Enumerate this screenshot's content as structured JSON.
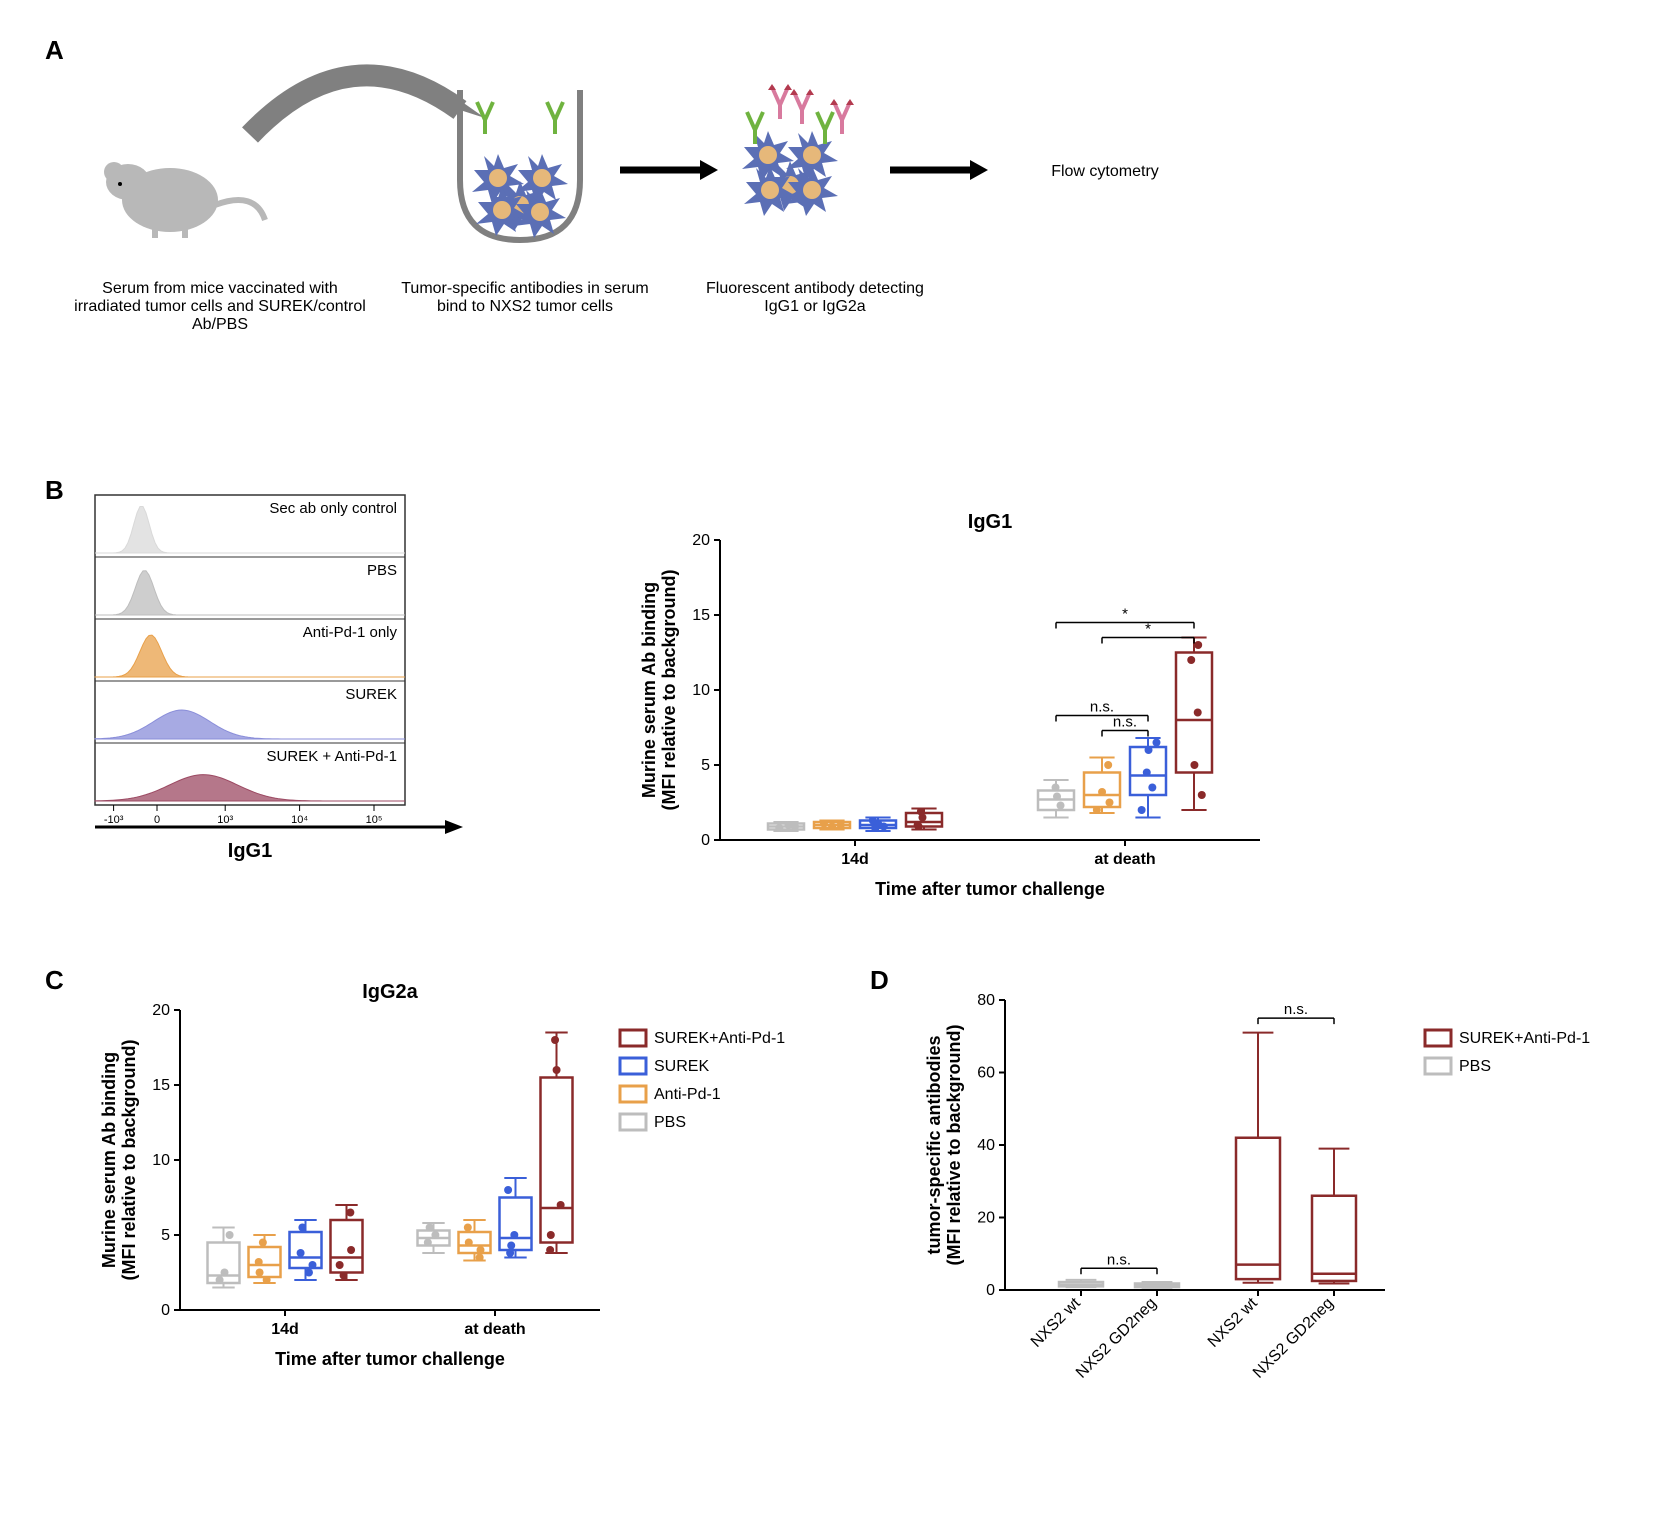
{
  "panelA": {
    "label": "A",
    "step1": "Serum from mice vaccinated with irradiated tumor cells and SUREK/control Ab/PBS",
    "step2": "Tumor-specific antibodies in serum bind to NXS2 tumor cells",
    "step3": "Fluorescent antibody detecting IgG1 or IgG2a",
    "step4": "Flow cytometry",
    "colors": {
      "mouse": "#9e9e9e",
      "arrow_curve": "#808080",
      "tumor_cell": "#5b6fb5",
      "tumor_core": "#e6b87a",
      "tube_outline": "#808080",
      "ab_green": "#6fb33f",
      "ab_pink": "#d87a9e",
      "ab_star": "#b33a4f"
    }
  },
  "panelB": {
    "label": "B",
    "histogram": {
      "x_axis": "IgG1",
      "x_ticks": [
        "-10³",
        "0",
        "10³",
        "10⁴",
        "10⁵"
      ],
      "traces": [
        {
          "label": "Sec ab only control",
          "color": "#d9d9d9",
          "peak_x": 0.15,
          "width": 0.05,
          "height": 0.9
        },
        {
          "label": "PBS",
          "color": "#bdbdbd",
          "peak_x": 0.16,
          "width": 0.06,
          "height": 0.85
        },
        {
          "label": "Anti-Pd-1 only",
          "color": "#e8a04a",
          "peak_x": 0.18,
          "width": 0.07,
          "height": 0.8
        },
        {
          "label": "SUREK",
          "color": "#8a8ed9",
          "peak_x": 0.28,
          "width": 0.18,
          "height": 0.55
        },
        {
          "label": "SUREK + Anti-Pd-1",
          "color": "#9c4a63",
          "peak_x": 0.35,
          "width": 0.22,
          "height": 0.5
        }
      ],
      "frame_color": "#333333"
    },
    "boxplot": {
      "title": "IgG1",
      "ylabel": "Murine serum Ab binding\n(MFI relative to background)",
      "xlabel": "Time after tumor challenge",
      "ylim": [
        0,
        20
      ],
      "ytick_step": 5,
      "groups": [
        "14d",
        "at death"
      ],
      "series": [
        {
          "name": "PBS",
          "color": "#bdbdbd"
        },
        {
          "name": "Anti-Pd-1",
          "color": "#e8a04a"
        },
        {
          "name": "SUREK",
          "color": "#3a5fd9"
        },
        {
          "name": "SUREK+Anti-Pd-1",
          "color": "#8a2a2a"
        }
      ],
      "data": {
        "14d": [
          {
            "q1": 0.7,
            "median": 0.9,
            "q3": 1.1,
            "min": 0.6,
            "max": 1.2,
            "points": [
              0.8,
              1.0,
              0.9
            ]
          },
          {
            "q1": 0.8,
            "median": 1.0,
            "q3": 1.2,
            "min": 0.7,
            "max": 1.3,
            "points": [
              0.9,
              1.1,
              1.0
            ]
          },
          {
            "q1": 0.8,
            "median": 1.0,
            "q3": 1.3,
            "min": 0.6,
            "max": 1.5,
            "points": [
              0.9,
              1.1,
              1.3,
              0.8
            ]
          },
          {
            "q1": 0.9,
            "median": 1.2,
            "q3": 1.8,
            "min": 0.7,
            "max": 2.1,
            "points": [
              1.0,
              1.5,
              1.9,
              0.9
            ]
          }
        ],
        "at_death": [
          {
            "q1": 2.0,
            "median": 2.7,
            "q3": 3.3,
            "min": 1.5,
            "max": 4.0,
            "points": [
              2.3,
              2.9,
              3.5
            ]
          },
          {
            "q1": 2.2,
            "median": 3.0,
            "q3": 4.5,
            "min": 1.8,
            "max": 5.5,
            "points": [
              2.5,
              3.2,
              5.0,
              2.0
            ]
          },
          {
            "q1": 3.0,
            "median": 4.3,
            "q3": 6.2,
            "min": 1.5,
            "max": 6.8,
            "points": [
              3.5,
              4.5,
              6.0,
              2.0,
              6.5
            ]
          },
          {
            "q1": 4.5,
            "median": 8.0,
            "q3": 12.5,
            "min": 2.0,
            "max": 13.5,
            "points": [
              5.0,
              8.5,
              12.0,
              13.0,
              3.0
            ]
          }
        ]
      },
      "annotations": [
        {
          "from": 0,
          "to": 2,
          "label": "n.s.",
          "y": 8.3
        },
        {
          "from": 1,
          "to": 2,
          "label": "n.s.",
          "y": 7.3
        },
        {
          "from": 0,
          "to": 3,
          "label": "*",
          "y": 14.5
        },
        {
          "from": 1,
          "to": 3,
          "label": "*",
          "y": 13.5
        }
      ],
      "title_fontsize": 20,
      "label_fontsize": 18,
      "tick_fontsize": 16
    }
  },
  "panelC": {
    "label": "C",
    "boxplot": {
      "title": "IgG2a",
      "ylabel": "Murine serum Ab binding\n(MFI relative to background)",
      "xlabel": "Time after tumor challenge",
      "ylim": [
        0,
        20
      ],
      "ytick_step": 5,
      "groups": [
        "14d",
        "at death"
      ],
      "series": [
        {
          "name": "PBS",
          "color": "#bdbdbd"
        },
        {
          "name": "Anti-Pd-1",
          "color": "#e8a04a"
        },
        {
          "name": "SUREK",
          "color": "#3a5fd9"
        },
        {
          "name": "SUREK+Anti-Pd-1",
          "color": "#8a2a2a"
        }
      ],
      "legend": [
        {
          "name": "SUREK+Anti-Pd-1",
          "color": "#8a2a2a"
        },
        {
          "name": "SUREK",
          "color": "#3a5fd9"
        },
        {
          "name": "Anti-Pd-1",
          "color": "#e8a04a"
        },
        {
          "name": "PBS",
          "color": "#bdbdbd"
        }
      ],
      "data": {
        "14d": [
          {
            "q1": 1.8,
            "median": 2.3,
            "q3": 4.5,
            "min": 1.5,
            "max": 5.5,
            "points": [
              2.0,
              2.5,
              5.0
            ]
          },
          {
            "q1": 2.2,
            "median": 3.0,
            "q3": 4.2,
            "min": 1.8,
            "max": 5.0,
            "points": [
              2.5,
              3.2,
              4.5,
              2.0
            ]
          },
          {
            "q1": 2.8,
            "median": 3.5,
            "q3": 5.2,
            "min": 2.0,
            "max": 6.0,
            "points": [
              3.0,
              3.8,
              5.5,
              2.5
            ]
          },
          {
            "q1": 2.5,
            "median": 3.5,
            "q3": 6.0,
            "min": 2.0,
            "max": 7.0,
            "points": [
              3.0,
              4.0,
              6.5,
              2.3
            ]
          }
        ],
        "at_death": [
          {
            "q1": 4.3,
            "median": 4.8,
            "q3": 5.3,
            "min": 3.8,
            "max": 5.8,
            "points": [
              4.5,
              5.0,
              5.5
            ]
          },
          {
            "q1": 3.8,
            "median": 4.3,
            "q3": 5.2,
            "min": 3.3,
            "max": 6.0,
            "points": [
              4.0,
              4.5,
              5.5,
              3.5
            ]
          },
          {
            "q1": 4.0,
            "median": 4.8,
            "q3": 7.5,
            "min": 3.5,
            "max": 8.8,
            "points": [
              4.3,
              5.0,
              8.0,
              3.8
            ]
          },
          {
            "q1": 4.5,
            "median": 6.8,
            "q3": 15.5,
            "min": 3.8,
            "max": 18.5,
            "points": [
              5.0,
              7.0,
              16.0,
              4.0,
              18.0
            ]
          }
        ]
      },
      "title_fontsize": 20,
      "label_fontsize": 18,
      "tick_fontsize": 16
    }
  },
  "panelD": {
    "label": "D",
    "boxplot": {
      "ylabel": "tumor-specific antibodies\n(MFI relative to background)",
      "ylim": [
        0,
        80
      ],
      "ytick_step": 20,
      "legend": [
        {
          "name": "SUREK+Anti-Pd-1",
          "color": "#8a2a2a"
        },
        {
          "name": "PBS",
          "color": "#bdbdbd"
        }
      ],
      "groups": [
        {
          "label": "NXS2 wt",
          "series_idx": 1
        },
        {
          "label": "NXS2 GD2neg",
          "series_idx": 1
        },
        {
          "label": "NXS2 wt",
          "series_idx": 0
        },
        {
          "label": "NXS2 GD2neg",
          "series_idx": 0
        }
      ],
      "data": [
        {
          "q1": 1.0,
          "median": 1.5,
          "q3": 2.2,
          "min": 0.8,
          "max": 2.8,
          "color": "#bdbdbd"
        },
        {
          "q1": 0.8,
          "median": 1.2,
          "q3": 1.8,
          "min": 0.6,
          "max": 2.2,
          "color": "#bdbdbd"
        },
        {
          "q1": 3.0,
          "median": 7.0,
          "q3": 42.0,
          "min": 2.0,
          "max": 71.0,
          "color": "#8a2a2a"
        },
        {
          "q1": 2.5,
          "median": 4.5,
          "q3": 26.0,
          "min": 1.8,
          "max": 39.0,
          "color": "#8a2a2a"
        }
      ],
      "annotations": [
        {
          "from": 0,
          "to": 1,
          "label": "n.s.",
          "y": 6
        },
        {
          "from": 2,
          "to": 3,
          "label": "n.s.",
          "y": 75
        }
      ],
      "label_fontsize": 18,
      "tick_fontsize": 16
    }
  },
  "layout": {
    "bg": "#ffffff",
    "axis_color": "#000000",
    "text_color": "#000000"
  }
}
